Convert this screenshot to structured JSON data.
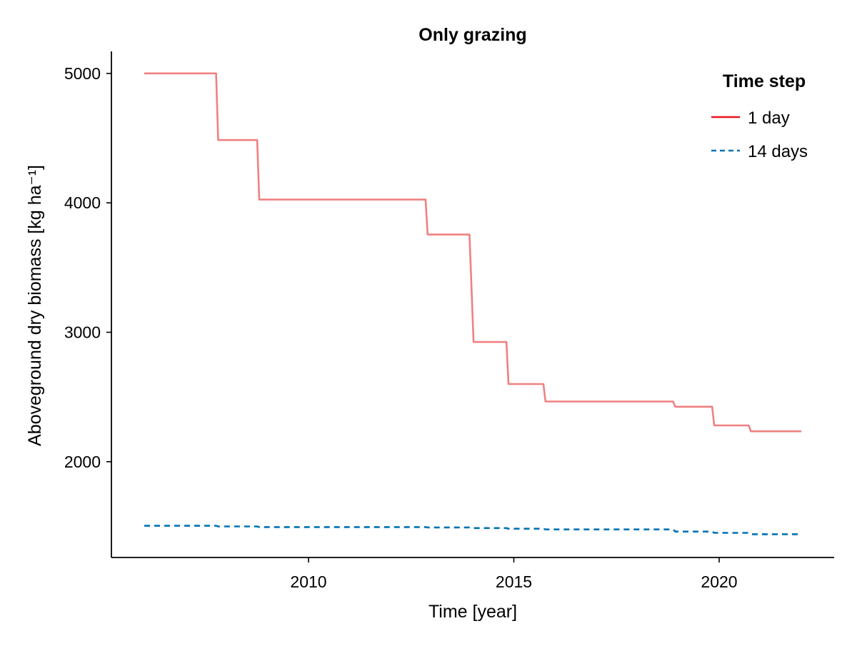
{
  "chart_data": {
    "type": "line",
    "title": "Only grazing",
    "xlabel": "Time [year]",
    "ylabel": "Aboveground dry biomass [kg ha⁻¹]",
    "xlim": [
      2005.2,
      2022.8
    ],
    "ylim": [
      1260,
      5170
    ],
    "x_ticks": [
      2010,
      2015,
      2020
    ],
    "y_ticks": [
      2000,
      3000,
      4000,
      5000
    ],
    "x_tick_labels": [
      "2010",
      "2015",
      "2020"
    ],
    "y_tick_labels": [
      "2000",
      "3000",
      "4000",
      "5000"
    ],
    "grid": false,
    "legend": {
      "title": "Time step",
      "position": "top-right"
    },
    "series": [
      {
        "name": "1 day",
        "color": "#f08080",
        "legend_color": "#e8141c",
        "style": "solid",
        "points": [
          [
            2006.0,
            5000
          ],
          [
            2007.75,
            5000
          ],
          [
            2007.8,
            4485
          ],
          [
            2008.75,
            4485
          ],
          [
            2008.8,
            4025
          ],
          [
            2012.85,
            4025
          ],
          [
            2012.9,
            3755
          ],
          [
            2013.92,
            3755
          ],
          [
            2014.02,
            2925
          ],
          [
            2014.82,
            2925
          ],
          [
            2014.87,
            2600
          ],
          [
            2015.72,
            2600
          ],
          [
            2015.77,
            2465
          ],
          [
            2018.88,
            2465
          ],
          [
            2018.93,
            2425
          ],
          [
            2019.83,
            2425
          ],
          [
            2019.88,
            2280
          ],
          [
            2020.72,
            2280
          ],
          [
            2020.77,
            2235
          ],
          [
            2022.0,
            2235
          ]
        ]
      },
      {
        "name": "14 days",
        "color": "#0072b2",
        "legend_color": "#0072b2",
        "style": "dashed",
        "points": [
          [
            2006.0,
            1505
          ],
          [
            2007.75,
            1505
          ],
          [
            2007.8,
            1500
          ],
          [
            2008.75,
            1500
          ],
          [
            2008.8,
            1495
          ],
          [
            2012.85,
            1495
          ],
          [
            2012.9,
            1492
          ],
          [
            2013.92,
            1492
          ],
          [
            2014.02,
            1487
          ],
          [
            2014.82,
            1487
          ],
          [
            2014.87,
            1482
          ],
          [
            2015.72,
            1482
          ],
          [
            2015.77,
            1477
          ],
          [
            2018.88,
            1477
          ],
          [
            2018.93,
            1460
          ],
          [
            2019.83,
            1460
          ],
          [
            2019.88,
            1450
          ],
          [
            2020.72,
            1450
          ],
          [
            2020.77,
            1440
          ],
          [
            2022.0,
            1440
          ]
        ]
      }
    ]
  }
}
